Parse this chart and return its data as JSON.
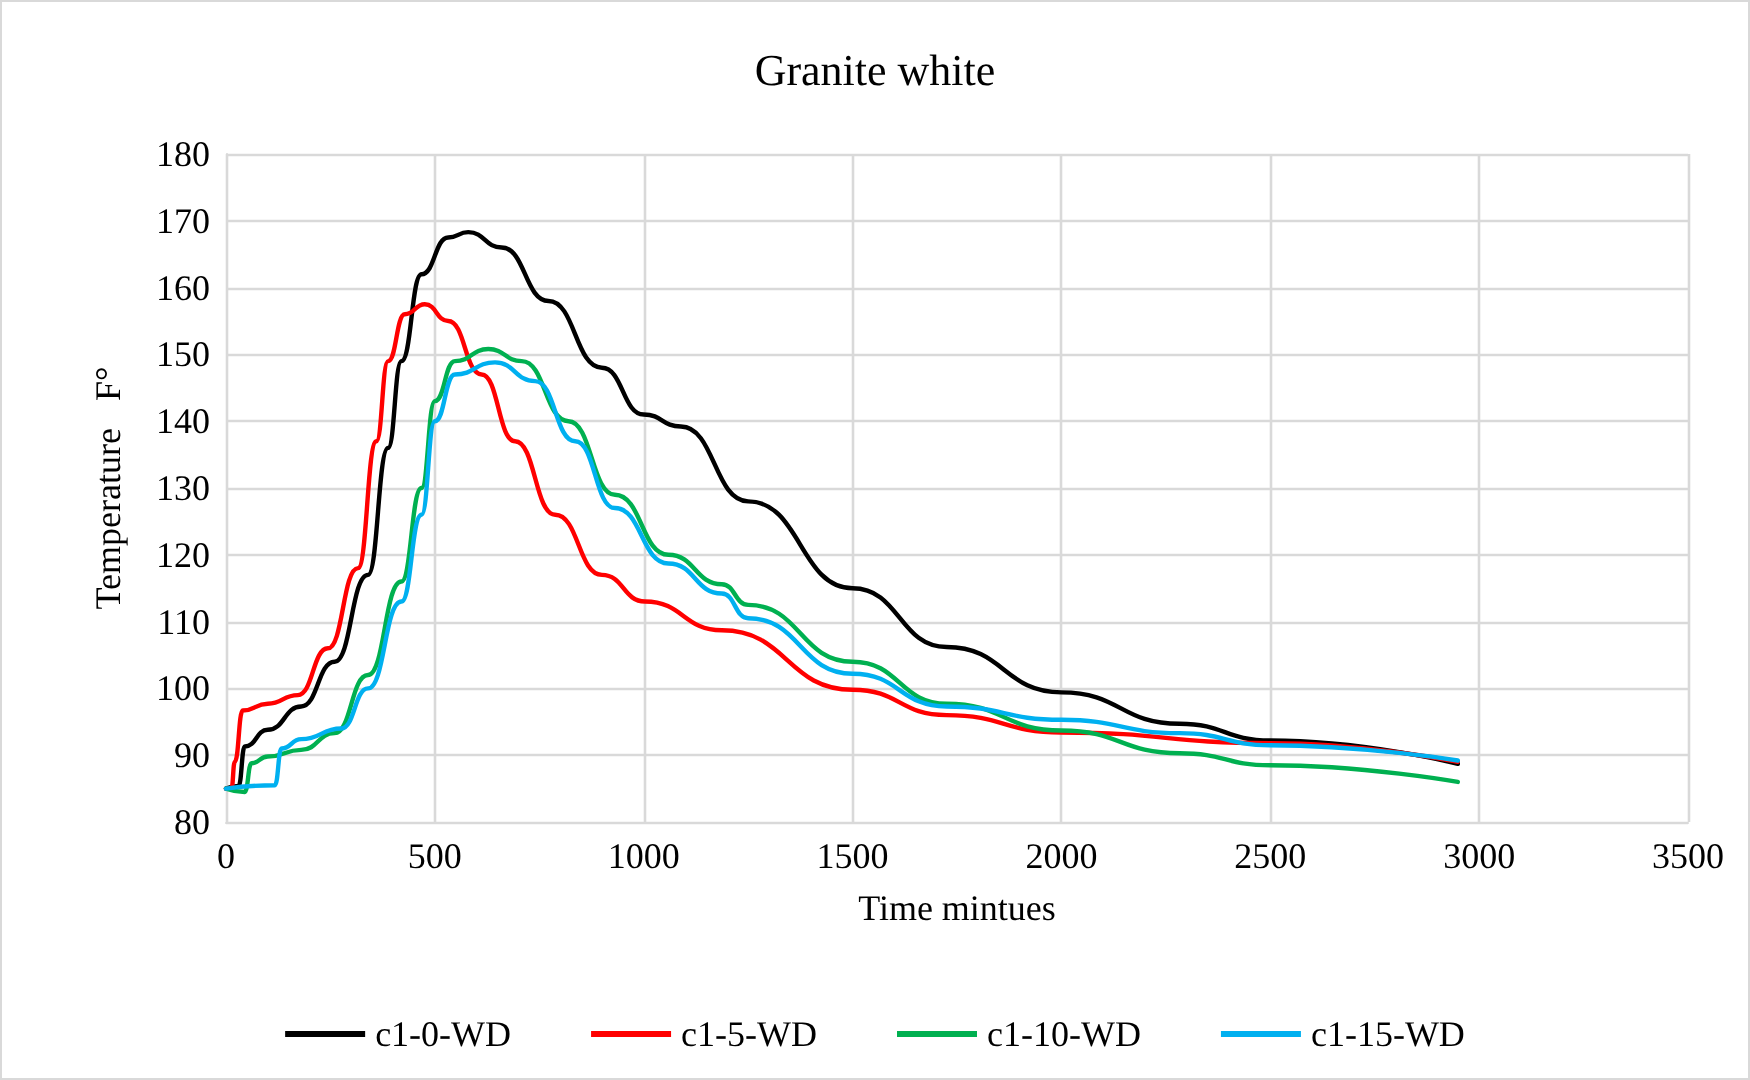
{
  "chart_data": {
    "type": "line",
    "title": "Granite white",
    "xlabel": "Time mintues",
    "ylabel": "Temperature   F°",
    "xlim": [
      0,
      3500
    ],
    "xticks": [
      0,
      500,
      1000,
      1500,
      2000,
      2500,
      3000,
      3500
    ],
    "ylim": [
      80,
      180
    ],
    "yticks": [
      80,
      90,
      100,
      110,
      120,
      130,
      140,
      150,
      160,
      170,
      180
    ],
    "grid": true,
    "legend": "bottom",
    "marker": "none",
    "line_style": "solid",
    "series": [
      {
        "name": "c1-0-WD",
        "color": "#000000",
        "x": [
          0,
          30,
          45,
          100,
          180,
          260,
          340,
          388,
          420,
          468,
          532,
          580,
          660,
          772,
          900,
          1000,
          1089,
          1250,
          1500,
          1725,
          2000,
          2283,
          2500,
          2949
        ],
        "values": [
          85,
          85.4,
          91.3,
          93.8,
          97.3,
          104,
          117,
          136,
          149,
          162,
          167.5,
          168.3,
          166,
          158,
          148,
          141,
          139.2,
          128,
          115,
          106.2,
          99.4,
          94.7,
          92.2,
          88.7
        ]
      },
      {
        "name": "c1-5-WD",
        "color": "#ff0000",
        "x": [
          0,
          13,
          21,
          40,
          100,
          172,
          244,
          316,
          360,
          388,
          428,
          476,
          532,
          612,
          692,
          788,
          900,
          1003,
          1187,
          1500,
          1725,
          2000,
          2500,
          2949
        ],
        "values": [
          85,
          85,
          89,
          96.7,
          97.7,
          99,
          106,
          118,
          137,
          149,
          156,
          157.5,
          155,
          147,
          137,
          126,
          117,
          113,
          108.7,
          99.8,
          96,
          93.4,
          91.8,
          89
        ]
      },
      {
        "name": "c1-10-WD",
        "color": "#00b050",
        "x": [
          0,
          45,
          61,
          100,
          180,
          260,
          340,
          420,
          468,
          500,
          548,
          628,
          708,
          820,
          931,
          1059,
          1187,
          1250,
          1500,
          1725,
          2000,
          2283,
          2500,
          2949
        ],
        "values": [
          85,
          84.5,
          88.8,
          89.8,
          90.8,
          93.3,
          102,
          116,
          130,
          143,
          149,
          150.8,
          149,
          140,
          129,
          120,
          115.6,
          112.5,
          104,
          97.7,
          93.7,
          90.3,
          88.5,
          86
        ]
      },
      {
        "name": "c1-15-WD",
        "color": "#00b0f0",
        "x": [
          0,
          117,
          133,
          180,
          276,
          340,
          420,
          468,
          500,
          548,
          644,
          740,
          836,
          931,
          1059,
          1187,
          1250,
          1500,
          1725,
          2000,
          2283,
          2500,
          2949
        ],
        "values": [
          85,
          85.5,
          91,
          92.4,
          94,
          100,
          113,
          126,
          140,
          147,
          148.8,
          146,
          137,
          127,
          118.7,
          114.2,
          110.5,
          102.2,
          97.3,
          95.3,
          93.3,
          91.5,
          89.2
        ]
      }
    ]
  }
}
